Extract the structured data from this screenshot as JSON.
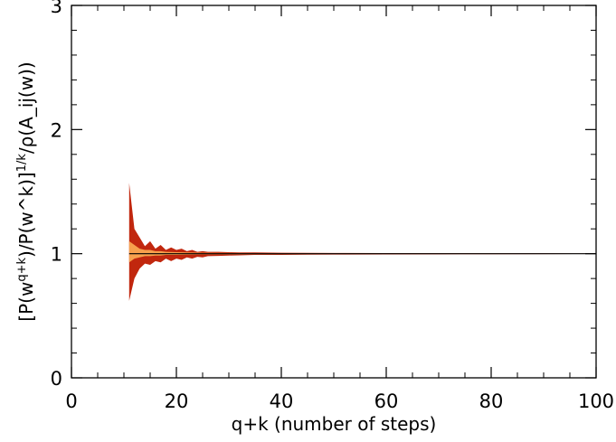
{
  "chart_data": {
    "type": "area",
    "title": "",
    "xlabel": "q+k (number of steps)",
    "ylabel": "[P(w^{q+k})/P(w^k)]^{1/k}/ρ(A_ij(w))",
    "xlim": [
      0,
      100
    ],
    "ylim": [
      0,
      3
    ],
    "x_ticks": [
      0,
      20,
      40,
      60,
      80,
      100
    ],
    "y_ticks": [
      0,
      1,
      2,
      3
    ],
    "x_tick_labels": [
      "0",
      "20",
      "40",
      "60",
      "80",
      "100"
    ],
    "y_tick_labels": [
      "0",
      "1",
      "2",
      "3"
    ],
    "grid": false,
    "legend": "none",
    "reference_line": {
      "y": 1,
      "color": "#000000"
    },
    "series": [
      {
        "role": "outer-band",
        "color": "#c1270e",
        "x": [
          11,
          12,
          13,
          14,
          15,
          16,
          17,
          18,
          19,
          20,
          21,
          22,
          23,
          24,
          25,
          26,
          28,
          30,
          32,
          35,
          40,
          45,
          50,
          60,
          70,
          80,
          90,
          100
        ],
        "upper": [
          1.57,
          1.2,
          1.13,
          1.06,
          1.1,
          1.04,
          1.07,
          1.03,
          1.05,
          1.03,
          1.04,
          1.02,
          1.03,
          1.015,
          1.02,
          1.015,
          1.015,
          1.012,
          1.01,
          1.01,
          1.008,
          1.007,
          1.006,
          1.005,
          1.004,
          1.003,
          1.003,
          1.002
        ],
        "lower": [
          0.62,
          0.8,
          0.88,
          0.92,
          0.91,
          0.94,
          0.93,
          0.96,
          0.94,
          0.96,
          0.95,
          0.97,
          0.96,
          0.975,
          0.97,
          0.98,
          0.982,
          0.985,
          0.987,
          0.99,
          0.99,
          0.992,
          0.993,
          0.994,
          0.995,
          0.996,
          0.997,
          0.998
        ]
      },
      {
        "role": "inner-band",
        "color": "#f7a04d",
        "x": [
          11,
          12,
          13,
          14,
          15,
          16,
          17,
          18,
          20,
          22,
          25,
          30,
          35,
          40,
          50,
          60,
          80,
          100
        ],
        "upper": [
          1.1,
          1.07,
          1.04,
          1.03,
          1.03,
          1.02,
          1.02,
          1.015,
          1.012,
          1.01,
          1.008,
          1.006,
          1.005,
          1.004,
          1.003,
          1.002,
          1.002,
          1.001
        ],
        "lower": [
          0.93,
          0.96,
          0.97,
          0.98,
          0.98,
          0.985,
          0.985,
          0.99,
          0.99,
          0.992,
          0.994,
          0.995,
          0.996,
          0.997,
          0.998,
          0.998,
          0.999,
          0.999
        ]
      }
    ]
  }
}
